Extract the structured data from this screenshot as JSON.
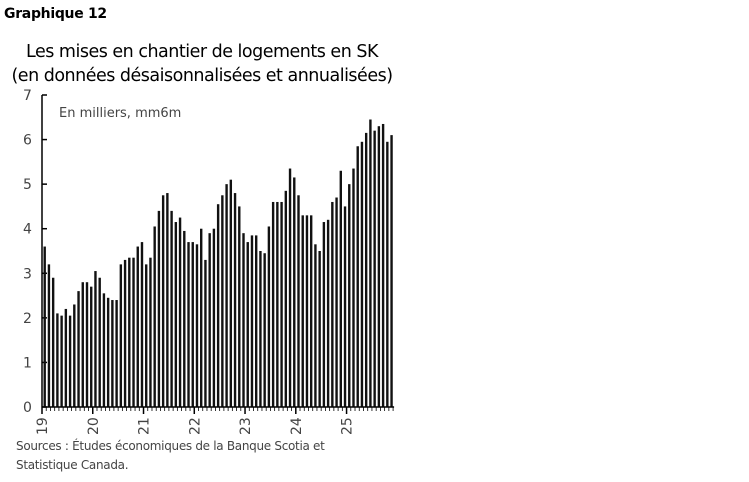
{
  "figure_label": "Graphique 12",
  "title_line1": "Les mises en chantier de logements en SK",
  "title_line2": "(en données désaisonnalisées et annualisées)",
  "unit_note": "En milliers, mm6m",
  "sources_line1": "Sources : Études économiques de la Banque Scotia et",
  "sources_line2": "Statistique Canada.",
  "chart_data": {
    "type": "bar",
    "title": "Les mises en chantier de logements en SK (en données désaisonnalisées et annualisées)",
    "xlabel": "",
    "ylabel": "En milliers, mm6m",
    "ylim": [
      0,
      7
    ],
    "yticks": [
      0,
      1,
      2,
      3,
      4,
      5,
      6,
      7
    ],
    "xtick_labels": [
      "19",
      "20",
      "21",
      "22",
      "23",
      "24",
      "25"
    ],
    "frequency": "monthly",
    "start": "2019-01",
    "grid": false,
    "legend": null,
    "values": [
      3.6,
      3.2,
      2.9,
      2.1,
      2.05,
      2.2,
      2.05,
      2.3,
      2.6,
      2.8,
      2.8,
      2.7,
      3.05,
      2.9,
      2.55,
      2.45,
      2.4,
      2.4,
      3.2,
      3.3,
      3.35,
      3.35,
      3.6,
      3.7,
      3.2,
      3.35,
      4.05,
      4.4,
      4.75,
      4.8,
      4.4,
      4.15,
      4.25,
      3.95,
      3.7,
      3.7,
      3.65,
      4.0,
      3.3,
      3.9,
      4.0,
      4.55,
      4.75,
      5.0,
      5.1,
      4.8,
      4.5,
      3.9,
      3.7,
      3.85,
      3.85,
      3.5,
      3.45,
      4.05,
      4.6,
      4.6,
      4.6,
      4.85,
      5.35,
      5.15,
      4.75,
      4.3,
      4.3,
      4.3,
      3.65,
      3.5,
      4.15,
      4.2,
      4.6,
      4.7,
      5.3,
      4.5,
      5.0,
      5.35,
      5.85,
      5.95,
      6.15,
      6.45,
      6.2,
      6.3,
      6.35,
      5.95,
      6.1
    ]
  }
}
